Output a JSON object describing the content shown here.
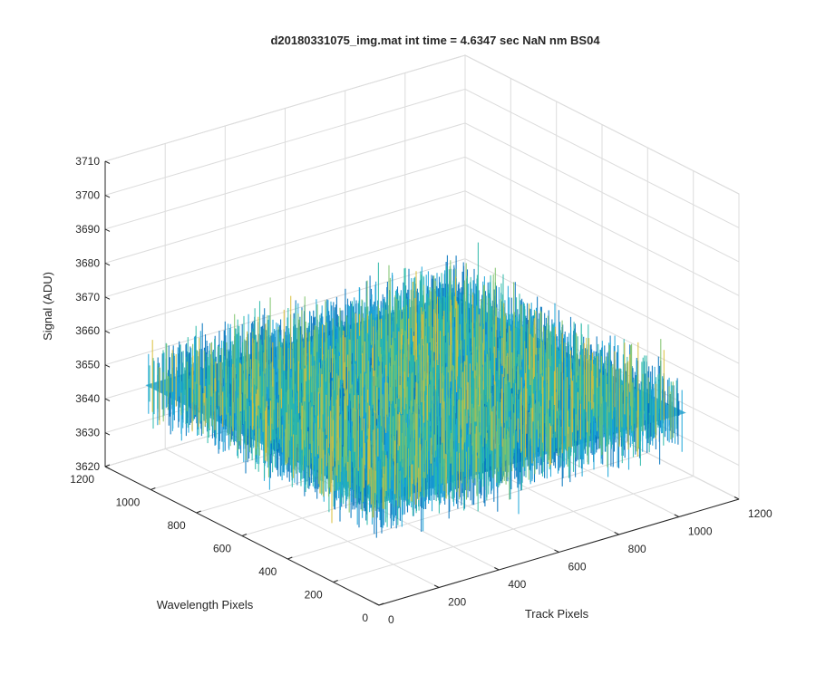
{
  "chart_data": {
    "type": "surface",
    "title": "d20180331075_img.mat int time = 4.6347 sec  NaN nm BS04",
    "xlabel": "Track Pixels",
    "ylabel": "Wavelength Pixels",
    "zlabel": "Signal (ADU)",
    "xlim": [
      0,
      1200
    ],
    "ylim": [
      0,
      1200
    ],
    "zlim": [
      3620,
      3710
    ],
    "xticks": [
      "0",
      "200",
      "400",
      "600",
      "800",
      "1000",
      "1200"
    ],
    "yticks": [
      "0",
      "200",
      "400",
      "600",
      "800",
      "1000",
      "1200"
    ],
    "zticks": [
      "3620",
      "3630",
      "3640",
      "3650",
      "3660",
      "3670",
      "3680",
      "3690",
      "3700",
      "3710"
    ],
    "data_extent": {
      "x": [
        0,
        1024
      ],
      "y": [
        0,
        1024
      ]
    },
    "signal_mean_approx": 3650,
    "signal_range_approx": [
      3625,
      3698
    ],
    "grid": true,
    "colormap": "parula",
    "colors": [
      "#0072BD",
      "#1AA5D8",
      "#2BB9A8",
      "#7EC36B",
      "#D9BF3A"
    ]
  }
}
